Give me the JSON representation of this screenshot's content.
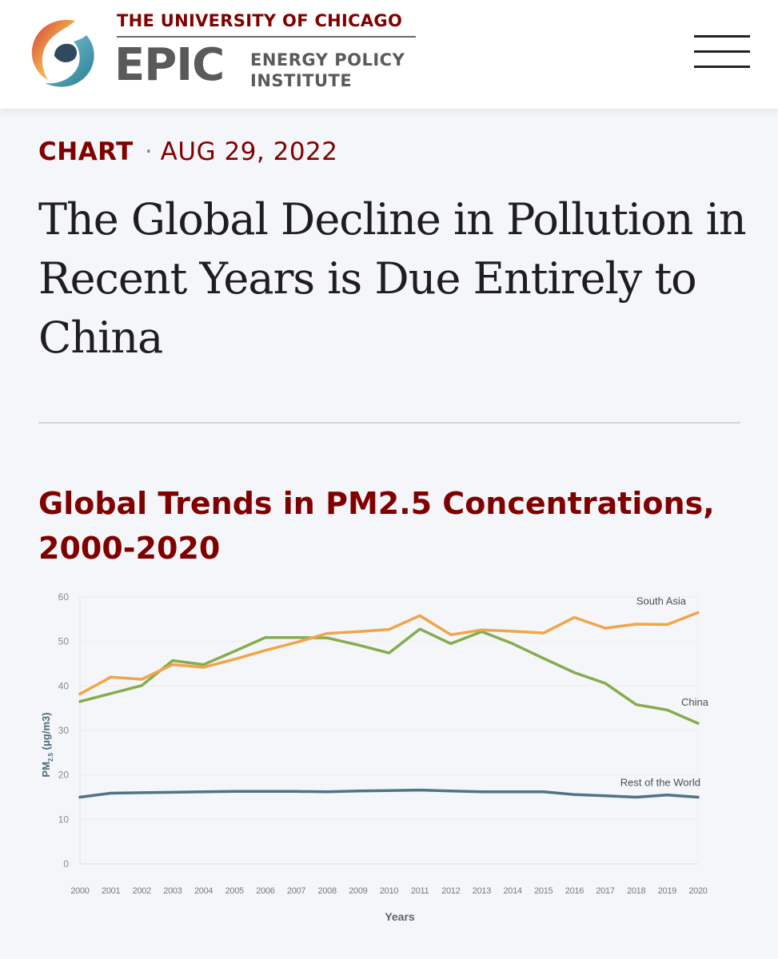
{
  "header": {
    "university": "THE UNIVERSITY OF CHICAGO",
    "brand": "EPIC",
    "brand_sub_line1": "ENERGY POLICY",
    "brand_sub_line2": "INSTITUTE",
    "logo_icon": "epic-swirl-logo",
    "menu_icon": "hamburger-menu-icon"
  },
  "article": {
    "category": "CHART",
    "separator": "·",
    "date": "AUG 29, 2022",
    "headline": "The Global Decline in Pollution in Recent Years is Due Entirely to China"
  },
  "colors": {
    "accent": "#800000",
    "south_asia": "#F0A54A",
    "china": "#86AC4E",
    "rest_of_world": "#4E7487"
  },
  "chart_data": {
    "type": "line",
    "title": "Global Trends in PM2.5 Concentrations, 2000-2020",
    "xlabel": "Years",
    "ylabel_main": "PM",
    "ylabel_sub": "2.5",
    "ylabel_unit": "(μg/m3)",
    "x": [
      "2000",
      "2001",
      "2002",
      "2003",
      "2004",
      "2005",
      "2006",
      "2007",
      "2008",
      "2009",
      "2010",
      "2011",
      "2012",
      "2013",
      "2014",
      "2015",
      "2016",
      "2017",
      "2018",
      "2019",
      "2020"
    ],
    "ylim": [
      0,
      60
    ],
    "yticks": [
      "0",
      "10",
      "20",
      "30",
      "40",
      "50",
      "60"
    ],
    "grid": true,
    "series": [
      {
        "name": "South Asia",
        "values": [
          38.2,
          42.0,
          41.5,
          44.8,
          44.2,
          46.0,
          48.0,
          49.8,
          51.8,
          52.2,
          52.7,
          55.8,
          51.5,
          52.6,
          52.3,
          51.9,
          55.4,
          53.0,
          53.9,
          53.8,
          56.5
        ]
      },
      {
        "name": "China",
        "values": [
          36.5,
          38.3,
          40.1,
          45.7,
          44.8,
          47.8,
          50.9,
          50.9,
          50.8,
          49.2,
          47.4,
          52.8,
          49.5,
          52.2,
          49.5,
          46.2,
          43.0,
          40.6,
          35.8,
          34.6,
          31.6
        ]
      },
      {
        "name": "Rest of the World",
        "values": [
          15.0,
          15.9,
          16.0,
          16.1,
          16.2,
          16.3,
          16.3,
          16.3,
          16.2,
          16.4,
          16.5,
          16.6,
          16.4,
          16.2,
          16.2,
          16.2,
          15.6,
          15.3,
          15.0,
          15.5,
          15.0
        ]
      }
    ]
  }
}
